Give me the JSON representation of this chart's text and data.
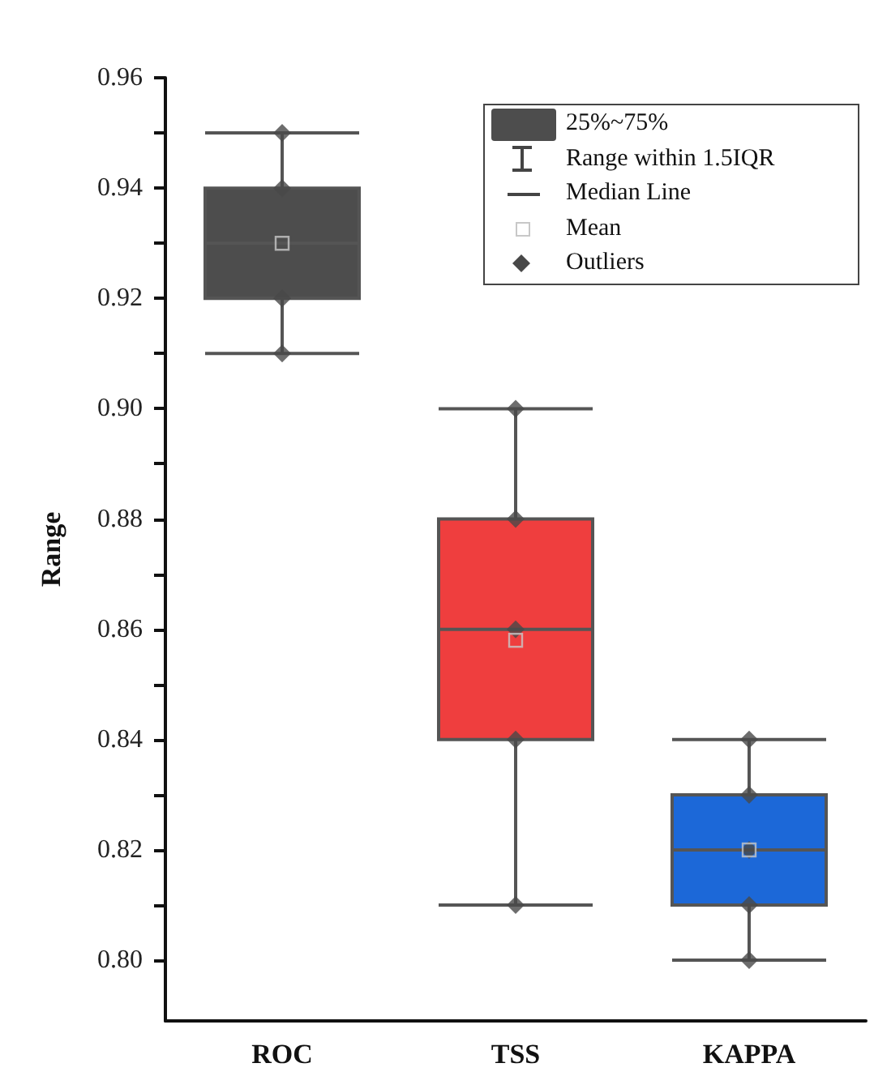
{
  "chart_data": {
    "type": "box",
    "categories": [
      "ROC",
      "TSS",
      "KAPPA"
    ],
    "ylabel": "Range",
    "ylim": [
      0.789,
      0.96
    ],
    "yticks": [
      {
        "value": 0.8,
        "label": "0.80"
      },
      {
        "value": 0.81,
        "label": null
      },
      0.82,
      {
        "value": 0.83,
        "label": null
      },
      0.84,
      {
        "value": 0.85,
        "label": null
      },
      0.86,
      {
        "value": 0.87,
        "label": null
      },
      0.88,
      {
        "value": 0.89,
        "label": null
      },
      {
        "value": 0.9,
        "label": "0.90"
      },
      {
        "value": 0.91,
        "label": null
      },
      0.92,
      {
        "value": 0.93,
        "label": null
      },
      0.94,
      {
        "value": 0.95,
        "label": null
      },
      0.96
    ],
    "grid": false,
    "legend": "top right",
    "annotations": [
      "Range within 1.5IQR",
      "Median Line"
    ],
    "series": [
      {
        "name": "25%~75%",
        "type": "box",
        "colors": [
          "#4d4d4d",
          "#ef3e3e",
          "#1c68d8"
        ],
        "boxes": [
          {
            "low": 0.91,
            "q1": 0.92,
            "median": 0.93,
            "q3": 0.94,
            "high": 0.95
          },
          {
            "low": 0.81,
            "q1": 0.84,
            "median": 0.86,
            "q3": 0.88,
            "high": 0.9
          },
          {
            "low": 0.8,
            "q1": 0.81,
            "median": 0.82,
            "q3": 0.83,
            "high": 0.84
          }
        ]
      },
      {
        "name": "Mean",
        "type": "scatter",
        "marker": "square",
        "color": "#c8c8c8",
        "values": [
          0.93,
          0.858,
          0.82
        ]
      },
      {
        "name": "Outliers",
        "type": "scatter",
        "marker": "diamond",
        "color": "#484848",
        "x": [
          "ROC",
          "ROC",
          "ROC",
          "ROC",
          "TSS",
          "TSS",
          "TSS",
          "TSS",
          "TSS",
          "KAPPA",
          "KAPPA",
          "KAPPA",
          "KAPPA",
          "KAPPA"
        ],
        "values": [
          0.95,
          0.94,
          0.92,
          0.91,
          0.9,
          0.88,
          0.86,
          0.84,
          0.81,
          0.84,
          0.83,
          0.82,
          0.81,
          0.8
        ]
      }
    ]
  }
}
